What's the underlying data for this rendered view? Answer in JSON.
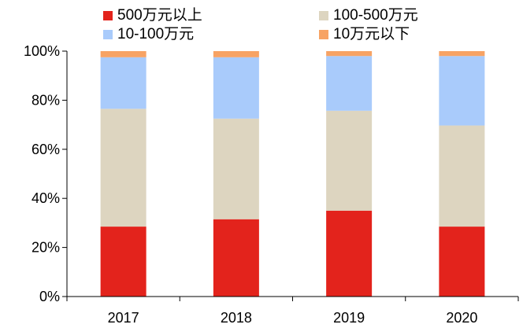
{
  "chart_data": {
    "type": "bar",
    "stacked": true,
    "categories": [
      "2017",
      "2018",
      "2019",
      "2020"
    ],
    "series": [
      {
        "name": "500万元以上",
        "color": "#E3231C",
        "values": [
          28.5,
          31.5,
          35.0,
          28.5
        ]
      },
      {
        "name": "100-500万元",
        "color": "#DDD5C0",
        "values": [
          48.0,
          41.0,
          40.7,
          41.2
        ]
      },
      {
        "name": "10-100万元",
        "color": "#A9CBFB",
        "values": [
          21.0,
          25.0,
          22.3,
          28.3
        ]
      },
      {
        "name": "10万元以下",
        "color": "#F7A364",
        "values": [
          2.5,
          2.5,
          2.0,
          2.0
        ]
      }
    ],
    "ylim": [
      0,
      100
    ],
    "yticks": [
      "0%",
      "20%",
      "40%",
      "60%",
      "80%",
      "100%"
    ],
    "legend_position": "top",
    "grid": false
  }
}
